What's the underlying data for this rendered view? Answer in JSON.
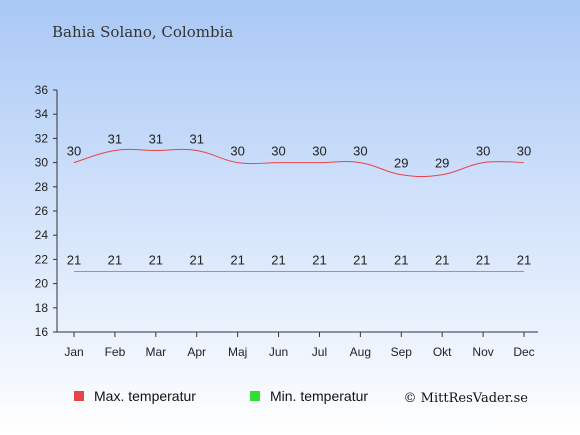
{
  "chart_data": {
    "type": "line",
    "title": "Bahia Solano, Colombia",
    "categories": [
      "Jan",
      "Feb",
      "Mar",
      "Apr",
      "Maj",
      "Jun",
      "Jul",
      "Aug",
      "Sep",
      "Okt",
      "Nov",
      "Dec"
    ],
    "series": [
      {
        "name": "Max. temperatur",
        "color": "#e8444a",
        "values": [
          30,
          31,
          31,
          31,
          30,
          30,
          30,
          30,
          29,
          29,
          30,
          30
        ]
      },
      {
        "name": "Min. temperatur",
        "color": "#33dd33",
        "values": [
          21,
          21,
          21,
          21,
          21,
          21,
          21,
          21,
          21,
          21,
          21,
          21
        ]
      }
    ],
    "yticks": [
      16,
      18,
      20,
      22,
      24,
      26,
      28,
      30,
      32,
      34,
      36
    ],
    "ylim": [
      16,
      36
    ],
    "grid": false,
    "legend_position": "bottom"
  },
  "credit": "© MittResVader.se",
  "background": {
    "top": "#a9c8f6",
    "bottom": "#ffffff"
  }
}
